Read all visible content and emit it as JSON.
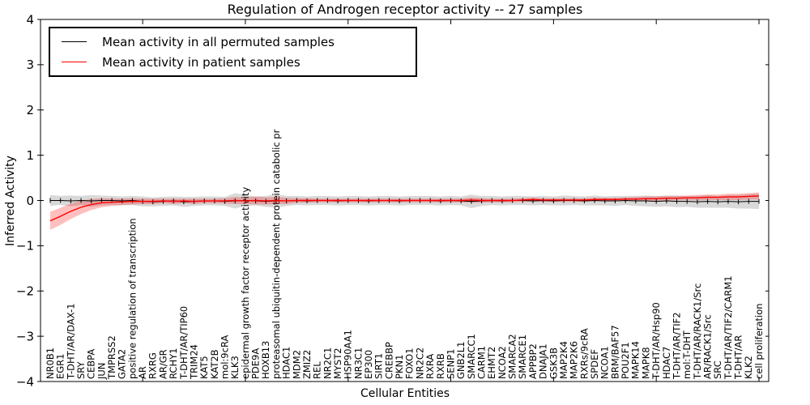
{
  "chart_data": {
    "type": "line",
    "title": "Regulation of Androgen receptor activity -- 27 samples",
    "xlabel": "Cellular Entities",
    "ylabel": "Inferred Activity",
    "ylim": [
      -4,
      4
    ],
    "grid": false,
    "legend_position": "upper left",
    "y_ticks": {
      "values": [
        4,
        3,
        2,
        1,
        0,
        -1,
        -2,
        -3,
        -4
      ],
      "labels": [
        "4",
        "3",
        "2",
        "1",
        "0",
        "−1",
        "−2",
        "−3",
        "−4"
      ]
    },
    "x_major_tick_indices": [
      9,
      19,
      29,
      39,
      49,
      59,
      69
    ],
    "categories": [
      "NR0B1",
      "EGR1",
      "T-DHT/AR/DAX-1",
      "SRY",
      "CEBPA",
      "JUN",
      "TMPRSS2",
      "GATA2",
      "positive regulation of transcription",
      "AR",
      "RXRG",
      "AR/GR",
      "RCHY1",
      "T-DHT/AR/TIP60",
      "TRIM24",
      "KAT5",
      "KAT2B",
      "mol:9cRA",
      "KLK3",
      "epidermal growth factor receptor activity",
      "PDE9A",
      "HOXB13",
      "proteasomal ubiquitin-dependent protein catabolic pr",
      "HDAC1",
      "MDM2",
      "ZMIZ2",
      "REL",
      "NR2C1",
      "MYST2",
      "HSP90AA1",
      "NR3C1",
      "EP300",
      "SIRT1",
      "CREBBP",
      "PKN1",
      "FOXO1",
      "NR2C2",
      "RXRA",
      "RXRB",
      "SENP1",
      "GNB2L1",
      "SMARCC1",
      "CARM1",
      "EHMT2",
      "NCOA2",
      "SMARCA2",
      "SMARCE1",
      "APPBP2",
      "DNAJA1",
      "GSK3B",
      "MAP2K4",
      "MAP2K6",
      "RXRs/9cRA",
      "SPDEF",
      "NCOA1",
      "BRM/BAF57",
      "POU2F1",
      "MAPK14",
      "MAPK8",
      "T-DHT/AR/Hsp90",
      "HDAC7",
      "T-DHT/AR/TIF2",
      "mol:T-DHT",
      "T-DHT/AR/RACK1/Src",
      "AR/RACK1/Src",
      "SRC",
      "T-DHT/AR/TIF2/CARM1",
      "T-DHT/AR",
      "KLK2",
      "cell proliferation"
    ],
    "series": [
      {
        "name": "Mean activity in all permuted samples",
        "color": "#000000",
        "band_color": "rgba(0,0,0,0.15)",
        "values": [
          0.0,
          0.0,
          -0.01,
          0.0,
          -0.01,
          0.0,
          0.0,
          -0.01,
          0.0,
          -0.02,
          -0.03,
          -0.02,
          -0.01,
          -0.03,
          -0.02,
          -0.01,
          -0.01,
          -0.02,
          -0.01,
          0.0,
          -0.01,
          -0.02,
          -0.01,
          -0.01,
          0.0,
          -0.01,
          0.0,
          0.0,
          -0.01,
          0.0,
          0.0,
          -0.01,
          0.0,
          0.0,
          -0.01,
          0.0,
          0.0,
          0.0,
          -0.01,
          0.0,
          -0.01,
          -0.02,
          -0.01,
          0.0,
          -0.01,
          0.0,
          0.0,
          -0.01,
          0.0,
          -0.01,
          0.0,
          0.0,
          -0.01,
          0.0,
          -0.01,
          -0.01,
          0.0,
          -0.01,
          -0.01,
          -0.02,
          -0.01,
          -0.02,
          -0.02,
          -0.03,
          -0.02,
          -0.03,
          -0.02,
          -0.03,
          -0.02,
          -0.02
        ],
        "std": [
          0.12,
          0.1,
          0.12,
          0.1,
          0.13,
          0.11,
          0.1,
          0.1,
          0.1,
          0.11,
          0.1,
          0.1,
          0.1,
          0.11,
          0.1,
          0.1,
          0.1,
          0.1,
          0.17,
          0.12,
          0.1,
          0.12,
          0.15,
          0.11,
          0.1,
          0.1,
          0.1,
          0.1,
          0.1,
          0.1,
          0.1,
          0.1,
          0.1,
          0.1,
          0.1,
          0.1,
          0.1,
          0.1,
          0.1,
          0.1,
          0.1,
          0.15,
          0.11,
          0.1,
          0.1,
          0.1,
          0.1,
          0.1,
          0.1,
          0.1,
          0.11,
          0.1,
          0.1,
          0.11,
          0.1,
          0.11,
          0.1,
          0.11,
          0.12,
          0.12,
          0.12,
          0.13,
          0.12,
          0.13,
          0.14,
          0.13,
          0.14,
          0.15,
          0.16,
          0.17
        ]
      },
      {
        "name": "Mean activity in patient samples",
        "color": "#ff0000",
        "band_color": "rgba(255,0,0,0.25)",
        "values": [
          -0.45,
          -0.35,
          -0.24,
          -0.15,
          -0.09,
          -0.05,
          -0.04,
          -0.03,
          -0.02,
          -0.02,
          -0.02,
          -0.01,
          -0.02,
          -0.01,
          -0.02,
          -0.01,
          -0.01,
          -0.01,
          0.0,
          -0.01,
          0.0,
          -0.01,
          0.0,
          -0.01,
          0.0,
          0.0,
          0.0,
          0.0,
          0.0,
          0.0,
          0.0,
          0.0,
          0.0,
          0.0,
          0.0,
          0.0,
          0.0,
          0.0,
          0.0,
          0.0,
          0.0,
          0.01,
          0.0,
          0.0,
          0.0,
          0.0,
          0.01,
          0.02,
          0.01,
          0.01,
          0.01,
          0.01,
          0.01,
          0.02,
          0.02,
          0.02,
          0.03,
          0.03,
          0.04,
          0.04,
          0.05,
          0.05,
          0.06,
          0.06,
          0.07,
          0.07,
          0.08,
          0.08,
          0.09,
          0.1
        ],
        "std": [
          0.2,
          0.19,
          0.17,
          0.15,
          0.12,
          0.1,
          0.08,
          0.07,
          0.07,
          0.06,
          0.06,
          0.05,
          0.06,
          0.05,
          0.06,
          0.05,
          0.05,
          0.06,
          0.08,
          0.07,
          0.09,
          0.08,
          0.08,
          0.07,
          0.05,
          0.05,
          0.04,
          0.04,
          0.04,
          0.04,
          0.04,
          0.04,
          0.04,
          0.04,
          0.04,
          0.04,
          0.04,
          0.04,
          0.04,
          0.04,
          0.04,
          0.06,
          0.05,
          0.04,
          0.04,
          0.04,
          0.04,
          0.05,
          0.04,
          0.04,
          0.04,
          0.04,
          0.04,
          0.04,
          0.04,
          0.04,
          0.04,
          0.05,
          0.05,
          0.05,
          0.05,
          0.05,
          0.05,
          0.06,
          0.06,
          0.06,
          0.07,
          0.07,
          0.07,
          0.08
        ]
      }
    ]
  }
}
